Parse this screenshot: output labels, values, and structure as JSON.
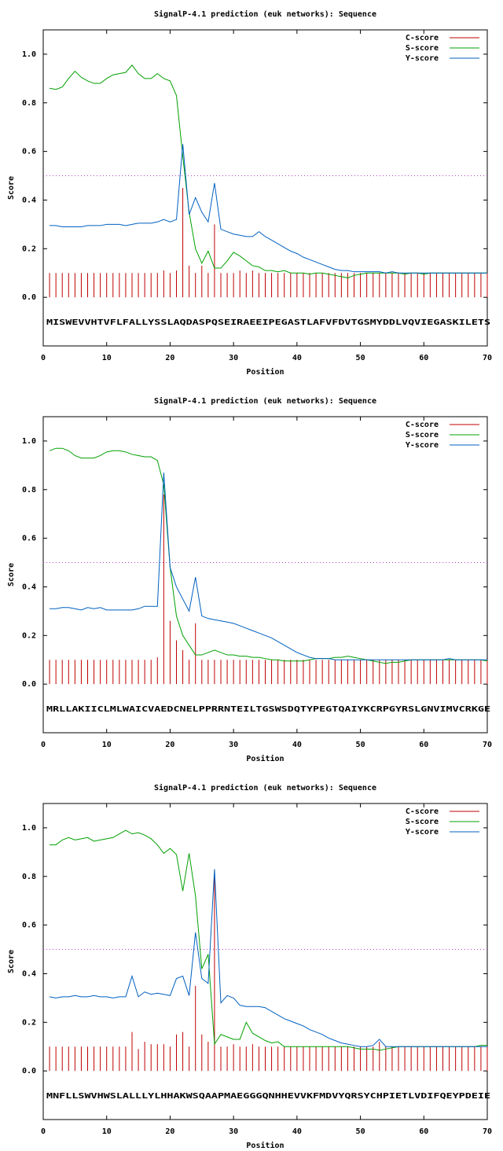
{
  "chart_data": [
    {
      "type": "line",
      "title": "SignalP-4.1 prediction (euk networks): Sequence",
      "xlabel": "Position",
      "ylabel": "Score",
      "sequence": "MISWEVVHTVFLFALLYSSLAQDASPQSEIRAEEIPEGASTLAFVFDVTGSMYDDLVQVIEGASKILETS",
      "xlim": [
        0,
        70
      ],
      "xticks": [
        0,
        10,
        20,
        30,
        40,
        50,
        60,
        70
      ],
      "ylim": [
        -0.2,
        1.1
      ],
      "yticks": [
        {
          "value": 0,
          "label": "0.0"
        },
        0.2,
        0.4,
        0.6,
        0.8,
        {
          "value": 1,
          "label": "1.0"
        }
      ],
      "threshold": 0.5,
      "threshold_color": "#b040c0",
      "legend": "top right",
      "x": [
        1,
        2,
        3,
        4,
        5,
        6,
        7,
        8,
        9,
        10,
        11,
        12,
        13,
        14,
        15,
        16,
        17,
        18,
        19,
        20,
        21,
        22,
        23,
        24,
        25,
        26,
        27,
        28,
        29,
        30,
        31,
        32,
        33,
        34,
        35,
        36,
        37,
        38,
        39,
        40,
        41,
        42,
        43,
        44,
        45,
        46,
        47,
        48,
        49,
        50,
        51,
        52,
        53,
        54,
        55,
        56,
        57,
        58,
        59,
        60,
        61,
        62,
        63,
        64,
        65,
        66,
        67,
        68,
        69,
        70
      ],
      "series": [
        {
          "name": "C-score",
          "color": "#c00000",
          "style": "impulse",
          "values": [
            0.1,
            0.1,
            0.1,
            0.1,
            0.1,
            0.1,
            0.1,
            0.1,
            0.1,
            0.1,
            0.1,
            0.1,
            0.1,
            0.1,
            0.1,
            0.1,
            0.1,
            0.1,
            0.11,
            0.1,
            0.11,
            0.45,
            0.13,
            0.1,
            0.13,
            0.1,
            0.3,
            0.1,
            0.1,
            0.1,
            0.11,
            0.1,
            0.11,
            0.1,
            0.1,
            0.1,
            0.1,
            0.1,
            0.1,
            0.1,
            0.1,
            0.1,
            0.1,
            0.1,
            0.1,
            0.1,
            0.1,
            0.1,
            0.1,
            0.1,
            0.1,
            0.1,
            0.1,
            0.1,
            0.1,
            0.1,
            0.1,
            0.1,
            0.1,
            0.1,
            0.1,
            0.1,
            0.1,
            0.1,
            0.1,
            0.1,
            0.1,
            0.1,
            0.1,
            0.1
          ]
        },
        {
          "name": "S-score",
          "color": "#00a000",
          "style": "line",
          "values": [
            0.86,
            0.855,
            0.865,
            0.9,
            0.93,
            0.905,
            0.89,
            0.88,
            0.88,
            0.9,
            0.915,
            0.92,
            0.925,
            0.955,
            0.92,
            0.9,
            0.9,
            0.92,
            0.9,
            0.89,
            0.83,
            0.58,
            0.35,
            0.2,
            0.14,
            0.19,
            0.12,
            0.12,
            0.15,
            0.185,
            0.17,
            0.15,
            0.13,
            0.125,
            0.11,
            0.11,
            0.105,
            0.11,
            0.1,
            0.1,
            0.1,
            0.095,
            0.1,
            0.1,
            0.095,
            0.09,
            0.085,
            0.08,
            0.09,
            0.095,
            0.1,
            0.1,
            0.1,
            0.1,
            0.1,
            0.1,
            0.095,
            0.1,
            0.1,
            0.095,
            0.1,
            0.1,
            0.1,
            0.1,
            0.1,
            0.1,
            0.1,
            0.1,
            0.1,
            0.1
          ]
        },
        {
          "name": "Y-score",
          "color": "#0060c0",
          "style": "line",
          "values": [
            0.295,
            0.295,
            0.29,
            0.29,
            0.29,
            0.29,
            0.295,
            0.295,
            0.295,
            0.3,
            0.3,
            0.3,
            0.295,
            0.3,
            0.305,
            0.305,
            0.305,
            0.31,
            0.32,
            0.31,
            0.32,
            0.63,
            0.34,
            0.41,
            0.35,
            0.31,
            0.47,
            0.28,
            0.27,
            0.26,
            0.255,
            0.25,
            0.25,
            0.27,
            0.25,
            0.235,
            0.22,
            0.205,
            0.19,
            0.18,
            0.165,
            0.155,
            0.145,
            0.135,
            0.125,
            0.115,
            0.11,
            0.11,
            0.105,
            0.105,
            0.105,
            0.105,
            0.105,
            0.1,
            0.105,
            0.1,
            0.1,
            0.1,
            0.1,
            0.1,
            0.1,
            0.1,
            0.1,
            0.1,
            0.1,
            0.1,
            0.1,
            0.1,
            0.1,
            0.1
          ]
        }
      ]
    },
    {
      "type": "line",
      "title": "SignalP-4.1 prediction (euk networks): Sequence",
      "xlabel": "Position",
      "ylabel": "Score",
      "sequence": "MRLLAKIICLMLWAICVAEDCNELPPRRNTEILTGSWSDQTYPEGTQAIYKCRPGYRSLGNVIMVCRKGE",
      "xlim": [
        0,
        70
      ],
      "xticks": [
        0,
        10,
        20,
        30,
        40,
        50,
        60,
        70
      ],
      "ylim": [
        -0.2,
        1.1
      ],
      "yticks": [
        {
          "value": 0,
          "label": "0.0"
        },
        0.2,
        0.4,
        0.6,
        0.8,
        {
          "value": 1,
          "label": "1.0"
        }
      ],
      "threshold": 0.5,
      "threshold_color": "#b040c0",
      "legend": "top right",
      "x": [
        1,
        2,
        3,
        4,
        5,
        6,
        7,
        8,
        9,
        10,
        11,
        12,
        13,
        14,
        15,
        16,
        17,
        18,
        19,
        20,
        21,
        22,
        23,
        24,
        25,
        26,
        27,
        28,
        29,
        30,
        31,
        32,
        33,
        34,
        35,
        36,
        37,
        38,
        39,
        40,
        41,
        42,
        43,
        44,
        45,
        46,
        47,
        48,
        49,
        50,
        51,
        52,
        53,
        54,
        55,
        56,
        57,
        58,
        59,
        60,
        61,
        62,
        63,
        64,
        65,
        66,
        67,
        68,
        69,
        70
      ],
      "series": [
        {
          "name": "C-score",
          "color": "#c00000",
          "style": "impulse",
          "values": [
            0.1,
            0.1,
            0.1,
            0.1,
            0.1,
            0.1,
            0.1,
            0.1,
            0.1,
            0.1,
            0.1,
            0.1,
            0.1,
            0.1,
            0.1,
            0.1,
            0.1,
            0.11,
            0.78,
            0.26,
            0.18,
            0.14,
            0.1,
            0.25,
            0.1,
            0.1,
            0.1,
            0.1,
            0.1,
            0.1,
            0.1,
            0.1,
            0.1,
            0.1,
            0.1,
            0.1,
            0.1,
            0.1,
            0.1,
            0.1,
            0.1,
            0.1,
            0.1,
            0.1,
            0.1,
            0.1,
            0.1,
            0.1,
            0.1,
            0.1,
            0.1,
            0.1,
            0.1,
            0.1,
            0.1,
            0.1,
            0.1,
            0.1,
            0.1,
            0.1,
            0.1,
            0.1,
            0.1,
            0.1,
            0.1,
            0.1,
            0.1,
            0.1,
            0.1,
            0.1
          ]
        },
        {
          "name": "S-score",
          "color": "#00a000",
          "style": "line",
          "values": [
            0.96,
            0.97,
            0.97,
            0.96,
            0.94,
            0.93,
            0.93,
            0.93,
            0.94,
            0.955,
            0.96,
            0.96,
            0.955,
            0.945,
            0.94,
            0.935,
            0.935,
            0.92,
            0.82,
            0.48,
            0.28,
            0.2,
            0.16,
            0.12,
            0.12,
            0.13,
            0.14,
            0.13,
            0.12,
            0.12,
            0.115,
            0.115,
            0.11,
            0.11,
            0.105,
            0.1,
            0.1,
            0.095,
            0.095,
            0.095,
            0.095,
            0.1,
            0.105,
            0.105,
            0.105,
            0.11,
            0.11,
            0.115,
            0.11,
            0.105,
            0.1,
            0.095,
            0.09,
            0.085,
            0.09,
            0.09,
            0.095,
            0.1,
            0.1,
            0.1,
            0.1,
            0.1,
            0.1,
            0.1,
            0.1,
            0.1,
            0.1,
            0.1,
            0.1,
            0.095
          ]
        },
        {
          "name": "Y-score",
          "color": "#0060c0",
          "style": "line",
          "values": [
            0.31,
            0.31,
            0.315,
            0.315,
            0.31,
            0.305,
            0.315,
            0.31,
            0.315,
            0.305,
            0.305,
            0.305,
            0.305,
            0.305,
            0.31,
            0.32,
            0.32,
            0.32,
            0.87,
            0.48,
            0.4,
            0.35,
            0.3,
            0.44,
            0.28,
            0.27,
            0.265,
            0.26,
            0.255,
            0.25,
            0.24,
            0.23,
            0.22,
            0.21,
            0.2,
            0.19,
            0.175,
            0.16,
            0.145,
            0.13,
            0.12,
            0.11,
            0.105,
            0.105,
            0.105,
            0.1,
            0.1,
            0.1,
            0.1,
            0.1,
            0.1,
            0.1,
            0.1,
            0.1,
            0.1,
            0.1,
            0.1,
            0.1,
            0.1,
            0.1,
            0.1,
            0.1,
            0.1,
            0.105,
            0.1,
            0.1,
            0.1,
            0.1,
            0.1,
            0.1
          ]
        }
      ]
    },
    {
      "type": "line",
      "title": "SignalP-4.1 prediction (euk networks): Sequence",
      "xlabel": "Position",
      "ylabel": "Score",
      "sequence": "MNFLLSWVHWSLALLLYLHHAKWSQAAPMAEGGGQNHHEVVKFMDVYQRSYCHPIETLVDIFQEYPDEIE",
      "xlim": [
        0,
        70
      ],
      "xticks": [
        0,
        10,
        20,
        30,
        40,
        50,
        60,
        70
      ],
      "ylim": [
        -0.2,
        1.1
      ],
      "yticks": [
        {
          "value": 0,
          "label": "0.0"
        },
        0.2,
        0.4,
        0.6,
        0.8,
        {
          "value": 1,
          "label": "1.0"
        }
      ],
      "threshold": 0.5,
      "threshold_color": "#b040c0",
      "legend": "top right",
      "x": [
        1,
        2,
        3,
        4,
        5,
        6,
        7,
        8,
        9,
        10,
        11,
        12,
        13,
        14,
        15,
        16,
        17,
        18,
        19,
        20,
        21,
        22,
        23,
        24,
        25,
        26,
        27,
        28,
        29,
        30,
        31,
        32,
        33,
        34,
        35,
        36,
        37,
        38,
        39,
        40,
        41,
        42,
        43,
        44,
        45,
        46,
        47,
        48,
        49,
        50,
        51,
        52,
        53,
        54,
        55,
        56,
        57,
        58,
        59,
        60,
        61,
        62,
        63,
        64,
        65,
        66,
        67,
        68,
        69,
        70
      ],
      "series": [
        {
          "name": "C-score",
          "color": "#c00000",
          "style": "impulse",
          "values": [
            0.1,
            0.1,
            0.1,
            0.1,
            0.1,
            0.1,
            0.1,
            0.1,
            0.1,
            0.1,
            0.1,
            0.1,
            0.1,
            0.16,
            0.09,
            0.12,
            0.11,
            0.11,
            0.11,
            0.1,
            0.15,
            0.16,
            0.1,
            0.35,
            0.15,
            0.12,
            0.8,
            0.1,
            0.1,
            0.11,
            0.1,
            0.1,
            0.11,
            0.1,
            0.1,
            0.1,
            0.1,
            0.1,
            0.1,
            0.1,
            0.1,
            0.1,
            0.1,
            0.1,
            0.1,
            0.1,
            0.1,
            0.1,
            0.1,
            0.1,
            0.1,
            0.1,
            0.12,
            0.1,
            0.1,
            0.1,
            0.1,
            0.1,
            0.1,
            0.1,
            0.1,
            0.1,
            0.1,
            0.1,
            0.1,
            0.1,
            0.1,
            0.1,
            0.1,
            0.1
          ]
        },
        {
          "name": "S-score",
          "color": "#00a000",
          "style": "line",
          "values": [
            0.93,
            0.93,
            0.95,
            0.96,
            0.95,
            0.955,
            0.96,
            0.945,
            0.95,
            0.955,
            0.96,
            0.975,
            0.99,
            0.975,
            0.98,
            0.97,
            0.955,
            0.93,
            0.895,
            0.915,
            0.89,
            0.74,
            0.895,
            0.72,
            0.42,
            0.48,
            0.11,
            0.15,
            0.14,
            0.13,
            0.13,
            0.2,
            0.155,
            0.14,
            0.125,
            0.115,
            0.12,
            0.1,
            0.1,
            0.1,
            0.1,
            0.1,
            0.1,
            0.1,
            0.1,
            0.1,
            0.1,
            0.1,
            0.095,
            0.09,
            0.09,
            0.09,
            0.085,
            0.09,
            0.095,
            0.1,
            0.1,
            0.1,
            0.1,
            0.1,
            0.1,
            0.1,
            0.1,
            0.1,
            0.1,
            0.1,
            0.1,
            0.1,
            0.105,
            0.105
          ]
        },
        {
          "name": "Y-score",
          "color": "#0060c0",
          "style": "line",
          "values": [
            0.305,
            0.3,
            0.305,
            0.305,
            0.31,
            0.305,
            0.305,
            0.31,
            0.305,
            0.305,
            0.3,
            0.305,
            0.305,
            0.39,
            0.305,
            0.325,
            0.315,
            0.32,
            0.315,
            0.31,
            0.38,
            0.39,
            0.31,
            0.57,
            0.38,
            0.36,
            0.83,
            0.28,
            0.31,
            0.3,
            0.27,
            0.265,
            0.265,
            0.265,
            0.26,
            0.245,
            0.23,
            0.215,
            0.205,
            0.195,
            0.185,
            0.17,
            0.16,
            0.15,
            0.135,
            0.125,
            0.115,
            0.11,
            0.105,
            0.1,
            0.1,
            0.105,
            0.13,
            0.1,
            0.1,
            0.1,
            0.1,
            0.1,
            0.1,
            0.1,
            0.1,
            0.1,
            0.1,
            0.1,
            0.1,
            0.1,
            0.1,
            0.1,
            0.1,
            0.1
          ]
        }
      ]
    }
  ]
}
